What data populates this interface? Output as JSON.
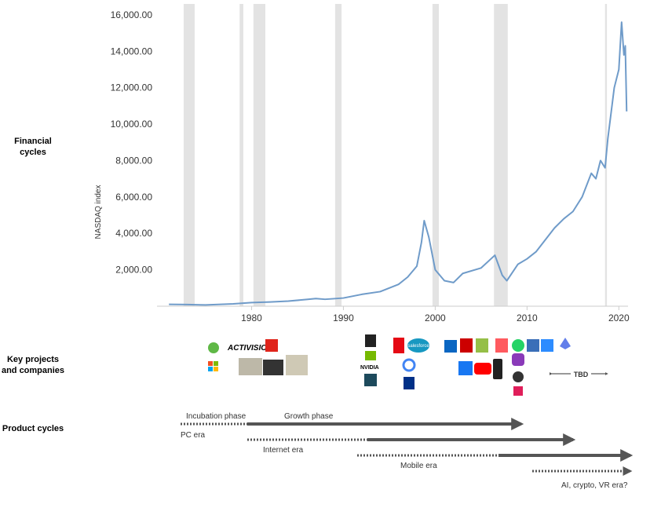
{
  "chart_data": {
    "type": "line",
    "y_axis_label": "NASDAQ index",
    "x": [
      1971,
      1973,
      1975,
      1978,
      1980,
      1982,
      1984,
      1986,
      1987,
      1988,
      1990,
      1992,
      1994,
      1996,
      1997,
      1998,
      1998.5,
      1998.8,
      1999.3,
      2000,
      2001,
      2002,
      2003,
      2005,
      2006.5,
      2007.3,
      2007.8,
      2009,
      2010,
      2011,
      2013,
      2014,
      2015,
      2016,
      2017,
      2017.5,
      2018,
      2018.5,
      2018.8,
      2019.5,
      2020,
      2020.3,
      2020.55,
      2020.7,
      2020.85
    ],
    "series": [
      {
        "name": "NASDAQ",
        "color": "#6f9bc9",
        "values": [
          100,
          90,
          70,
          130,
          200,
          230,
          280,
          370,
          420,
          380,
          450,
          650,
          800,
          1200,
          1600,
          2200,
          3500,
          4700,
          3800,
          2000,
          1400,
          1300,
          1800,
          2100,
          2800,
          1700,
          1400,
          2300,
          2600,
          3000,
          4300,
          4800,
          5200,
          6000,
          7300,
          7000,
          8000,
          7600,
          9200,
          12000,
          13000,
          15600,
          13800,
          14300,
          10700
        ]
      }
    ],
    "shaded_periods": [
      [
        1972.6,
        1973.8
      ],
      [
        1978.7,
        1979.1
      ],
      [
        1980.2,
        1981.5
      ],
      [
        1989.1,
        1989.8
      ],
      [
        1999.7,
        2000.4
      ],
      [
        2006.4,
        2007.9
      ],
      [
        2018.5,
        2018.7
      ]
    ],
    "shade_color": "#e3e3e3",
    "xlim": [
      1969.7,
      2021
    ],
    "xticks": [
      1980,
      1990,
      2000,
      2010,
      2020
    ],
    "ylim": [
      0,
      16600
    ],
    "yticks": [
      {
        "value": 2000,
        "label": "2,000.00"
      },
      {
        "value": 4000,
        "label": "4,000.00"
      },
      {
        "value": 6000,
        "label": "6,000.00"
      },
      {
        "value": 8000,
        "label": "8,000.00"
      },
      {
        "value": 10000,
        "label": "10,000.00"
      },
      {
        "value": 12000,
        "label": "12,000.00"
      },
      {
        "value": 14000,
        "label": "14,000.00"
      },
      {
        "value": 16000,
        "label": "16,000.00"
      }
    ],
    "grid": false
  },
  "row_labels": {
    "financial": [
      "Financial",
      "cycles"
    ],
    "projects": [
      "Key projects",
      "and companies"
    ],
    "product": "Product cycles"
  },
  "companies": {
    "activision": "ACTIVISION",
    "nvidia": "NVIDIA",
    "salesforce": "salesforce",
    "tbd": "TBD"
  },
  "product_cycles": {
    "incubation": "Incubation phase",
    "growth": "Growth phase",
    "pc": "PC era",
    "internet": "Internet era",
    "mobile": "Mobile era",
    "next": "AI, crypto, VR era?"
  }
}
